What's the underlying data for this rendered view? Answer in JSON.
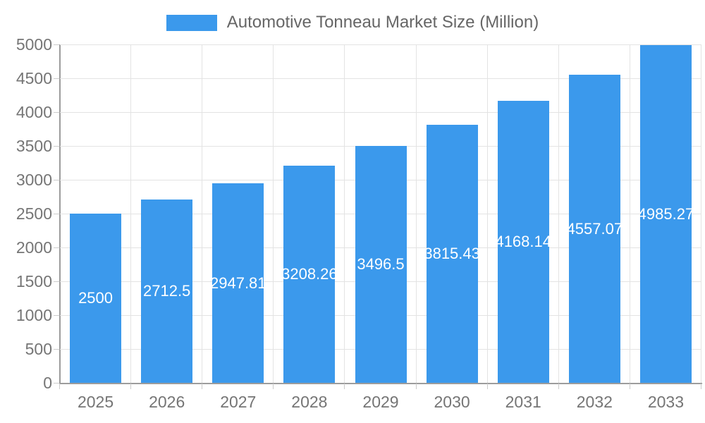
{
  "legend": {
    "label": "Automotive Tonneau Market Size (Million)"
  },
  "chart_data": {
    "type": "bar",
    "title": "Automotive Tonneau Market Size (Million)",
    "categories": [
      "2025",
      "2026",
      "2027",
      "2028",
      "2029",
      "2030",
      "2031",
      "2032",
      "2033"
    ],
    "series": [
      {
        "name": "Automotive Tonneau Market Size (Million)",
        "values": [
          2500,
          2712.5,
          2947.81,
          3208.26,
          3496.5,
          3815.43,
          4168.14,
          4557.07,
          4985.27
        ]
      }
    ],
    "xlabel": "",
    "ylabel": "",
    "ylim": [
      0,
      5000
    ],
    "ytick_step": 500,
    "grid": true,
    "legend_position": "top",
    "value_labels": "inside-center-white"
  },
  "colors": {
    "bar": "#3B99EC",
    "legend_text": "#666666",
    "tick_text": "#757575",
    "axis": "#9c9c9c",
    "grid": "#e3e3e3",
    "tick_mark": "#cccccc",
    "value_label": "#ffffff",
    "background": "#ffffff"
  }
}
